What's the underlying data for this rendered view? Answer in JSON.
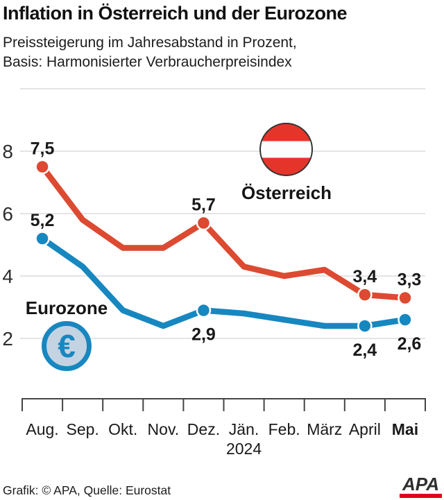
{
  "header": {
    "title": "Inflation in Österreich und der Eurozone",
    "subtitle": "Preissteigerung im Jahresabstand in Prozent,\nBasis: Harmonisierter Verbraucherpreisindex"
  },
  "chart_data": {
    "type": "line",
    "title": "Inflation in Österreich und der Eurozone",
    "ylabel": "Prozent",
    "xlabel": "",
    "categories": [
      "Aug.",
      "Sep.",
      "Okt.",
      "Nov.",
      "Dez.",
      "Jän.",
      "Feb.",
      "März",
      "April",
      "Mai"
    ],
    "x_bold_index": 9,
    "x_year_label": {
      "text": "2024",
      "under_category_index": 5
    },
    "ylim": [
      0,
      10
    ],
    "yticks": [
      2,
      4,
      6,
      8
    ],
    "grid": true,
    "legend_position": "inside",
    "series": [
      {
        "name": "Österreich",
        "icon": "austria-flag-icon",
        "color": "#dc4a32",
        "values": [
          7.5,
          5.8,
          4.9,
          4.9,
          5.7,
          4.3,
          4.0,
          4.2,
          3.4,
          3.3
        ],
        "labeled_points": [
          {
            "index": 0,
            "label": "7,5",
            "position": "above"
          },
          {
            "index": 4,
            "label": "5,7",
            "position": "above"
          },
          {
            "index": 8,
            "label": "3,4",
            "position": "above"
          },
          {
            "index": 9,
            "label": "3,3",
            "position": "above"
          }
        ]
      },
      {
        "name": "Eurozone",
        "icon": "euro-coin-icon",
        "color": "#1787c0",
        "values": [
          5.2,
          4.3,
          2.9,
          2.4,
          2.9,
          2.8,
          2.6,
          2.4,
          2.4,
          2.6
        ],
        "labeled_points": [
          {
            "index": 0,
            "label": "5,2",
            "position": "above"
          },
          {
            "index": 4,
            "label": "2,9",
            "position": "below"
          },
          {
            "index": 8,
            "label": "2,4",
            "position": "below"
          },
          {
            "index": 9,
            "label": "2,6",
            "position": "below"
          }
        ]
      }
    ]
  },
  "icons": {
    "euro_symbol": "€",
    "austria_flag_colors": [
      "#e5352b",
      "#ffffff",
      "#e5352b"
    ]
  },
  "colors": {
    "austria_line": "#dc4a32",
    "eurozone_line": "#1787c0",
    "gridline": "#dbdbdb",
    "axis": "#444444",
    "text": "#191919",
    "apa_red": "#e2001a"
  },
  "footer": {
    "credit": "Grafik: © APA, Quelle: Eurostat",
    "logo_text": "APA"
  }
}
